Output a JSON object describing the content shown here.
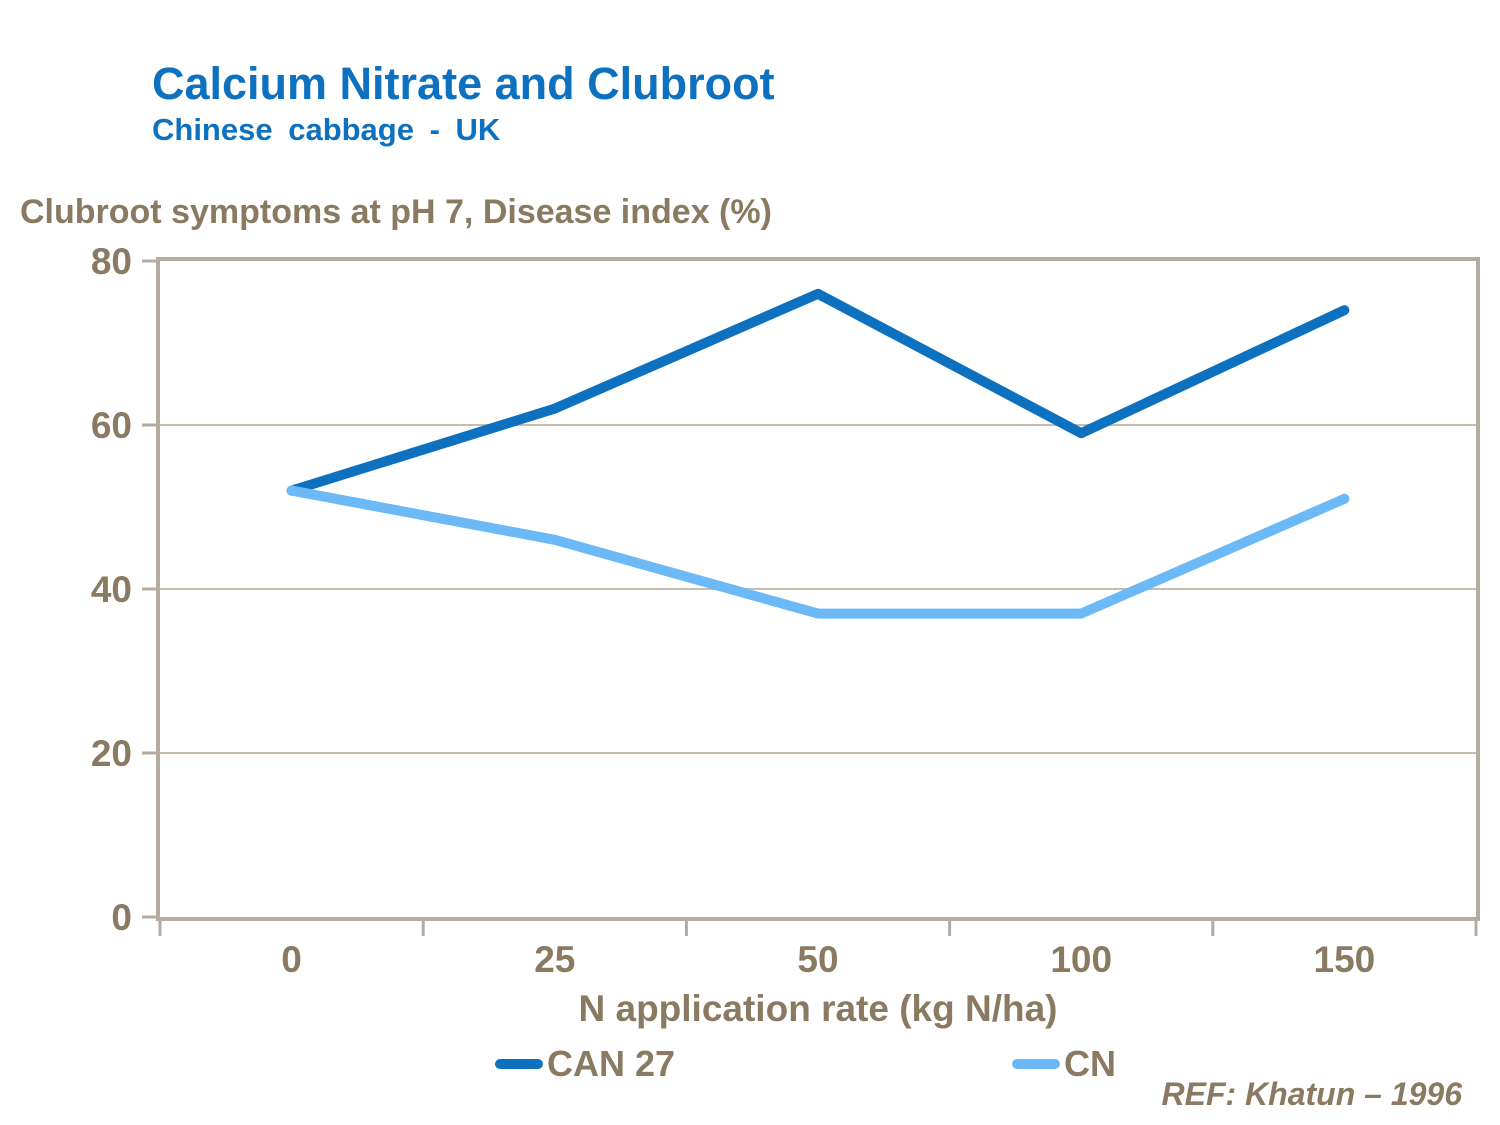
{
  "header": {
    "title": "Calcium Nitrate and Clubroot",
    "subtitle": "Chinese cabbage - UK"
  },
  "chart_data": {
    "type": "line",
    "title": "Clubroot symptoms at pH 7, Disease index (%)",
    "categories": [
      "0",
      "25",
      "50",
      "100",
      "150"
    ],
    "series": [
      {
        "name": "CAN 27",
        "values": [
          52,
          62,
          76,
          59,
          74
        ],
        "color": "#0d71bf"
      },
      {
        "name": "CN",
        "values": [
          52,
          46,
          37,
          37,
          51
        ],
        "color": "#6cb9f7"
      }
    ],
    "xlabel": "N application rate (kg N/ha)",
    "ylabel": "Clubroot symptoms at pH 7, Disease index (%)",
    "ylim": [
      0,
      80
    ],
    "yticks": [
      0,
      20,
      40,
      60,
      80
    ],
    "grid": true,
    "legend_position": "bottom"
  },
  "footer": {
    "ref": "REF: Khatun – 1996"
  },
  "colors": {
    "title_blue": "#0d71bf",
    "text_brown": "#8a7a62",
    "frame": "#b5aba0",
    "gridline": "#c6bcb0",
    "series_dark": "#0d71bf",
    "series_light": "#6cb9f7"
  }
}
